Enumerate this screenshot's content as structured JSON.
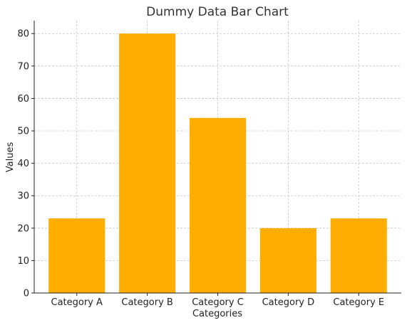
{
  "chart_data": {
    "type": "bar",
    "title": "Dummy Data Bar Chart",
    "xlabel": "Categories",
    "ylabel": "Values",
    "categories": [
      "Category A",
      "Category B",
      "Category C",
      "Category D",
      "Category E"
    ],
    "values": [
      23,
      80,
      54,
      20,
      23
    ],
    "ylim": [
      0,
      84
    ],
    "yticks": [
      0,
      10,
      20,
      30,
      40,
      50,
      60,
      70,
      80
    ],
    "grid": true,
    "bar_color": "#ffad00"
  }
}
